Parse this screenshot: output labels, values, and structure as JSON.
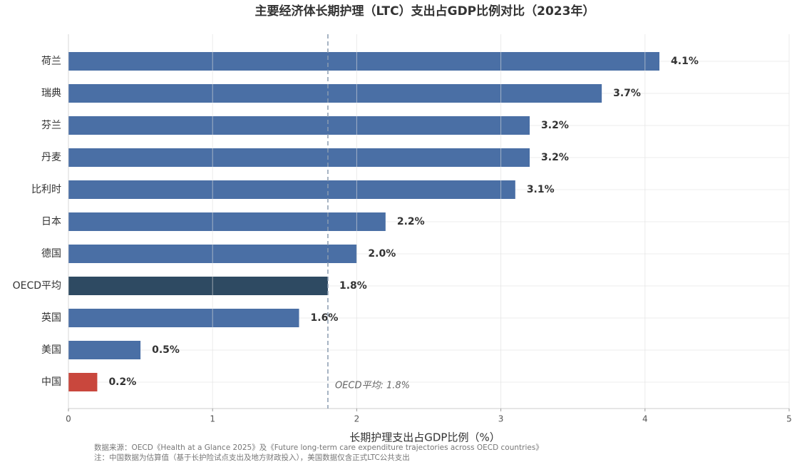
{
  "chart_data": {
    "type": "barh",
    "title": "主要经济体长期护理（LTC）支出占GDP比例对比（2023年）",
    "xlabel": "长期护理支出占GDP比例（%）",
    "categories": [
      "荷兰",
      "瑞典",
      "芬兰",
      "丹麦",
      "比利时",
      "日本",
      "德国",
      "OECD平均",
      "英国",
      "美国",
      "中国"
    ],
    "values": [
      4.1,
      3.7,
      3.2,
      3.2,
      3.1,
      2.2,
      2.0,
      1.8,
      1.6,
      0.5,
      0.2
    ],
    "value_labels": [
      "4.1%",
      "3.7%",
      "3.2%",
      "3.2%",
      "3.1%",
      "2.2%",
      "2.0%",
      "1.8%",
      "1.6%",
      "0.5%",
      "0.2%"
    ],
    "colors": [
      "#4a6fa5",
      "#4a6fa5",
      "#4a6fa5",
      "#4a6fa5",
      "#4a6fa5",
      "#4a6fa5",
      "#4a6fa5",
      "#2e4a62",
      "#4a6fa5",
      "#4a6fa5",
      "#c9473d"
    ],
    "xlim": [
      0,
      5
    ],
    "xticks": [
      0,
      1,
      2,
      3,
      4,
      5
    ],
    "grid": true,
    "reference_line": {
      "value": 1.8,
      "label": "OECD平均: 1.8%"
    },
    "notes": [
      "数据来源：OECD《Health at a Glance 2025》及《Future long-term care expenditure trajectories across OECD countries》",
      "注：中国数据为估算值（基于长护险试点支出及地方财政投入），美国数据仅含正式LTC公共支出"
    ]
  }
}
